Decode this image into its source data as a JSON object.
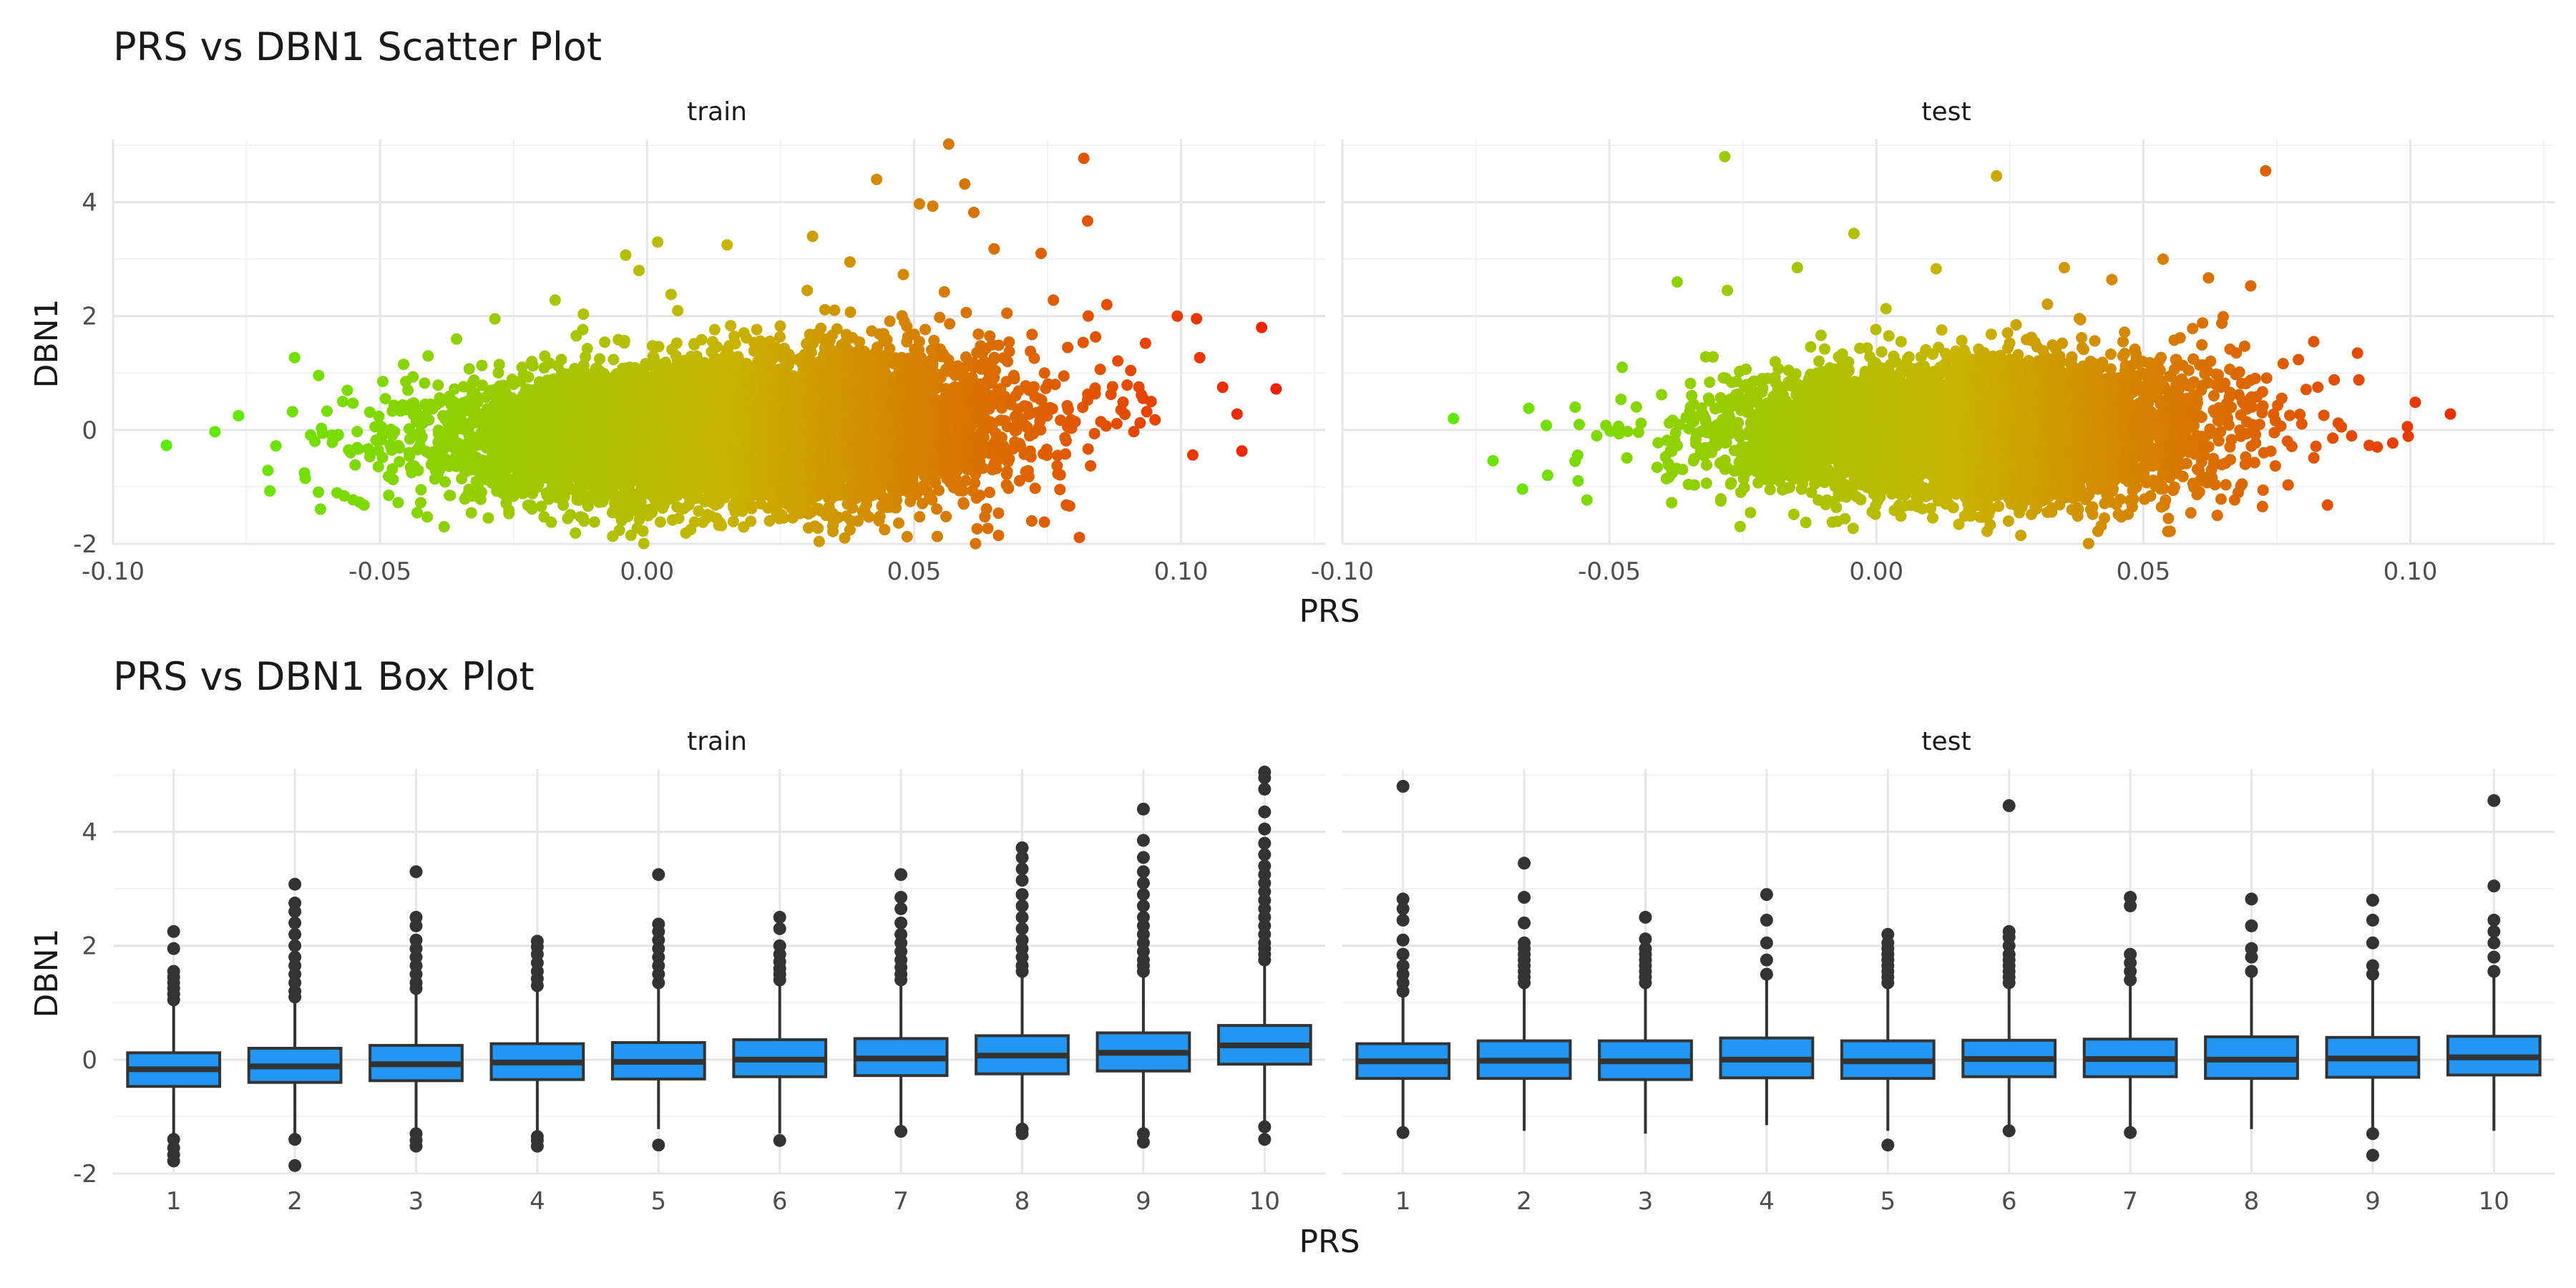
{
  "chart_data": [
    {
      "type": "scatter",
      "title": "PRS vs DBN1 Scatter Plot",
      "xlabel": "PRS",
      "ylabel": "DBN1",
      "facets": [
        "train",
        "test"
      ],
      "x_ticks": [
        "-0.10",
        "-0.05",
        "0.00",
        "0.05",
        "0.10"
      ],
      "y_ticks": [
        "-2",
        "0",
        "2",
        "4"
      ],
      "xlim": [
        -0.1,
        0.127
      ],
      "ylim": [
        -2.0,
        5.1
      ],
      "grid": true,
      "color_scale": {
        "low": "#55ee00",
        "mid": "#c8b400",
        "high": "#f01e00"
      },
      "series": [
        {
          "facet": "train",
          "points": [
            [
              -0.09,
              -0.27
            ],
            [
              -0.0765,
              0.25
            ],
            [
              -0.071,
              -0.71
            ],
            [
              -0.066,
              1.27
            ],
            [
              -0.0664,
              0.32
            ],
            [
              -0.0695,
              -0.28
            ],
            [
              -0.063,
              -0.09
            ],
            [
              -0.064,
              -0.85
            ],
            [
              -0.057,
              0.5
            ],
            [
              -0.053,
              -1.32
            ],
            [
              -0.0452,
              0.85
            ],
            [
              -0.041,
              1.3
            ],
            [
              -0.039,
              -0.63
            ],
            [
              -0.037,
              -1.15
            ],
            [
              -0.0285,
              1.95
            ],
            [
              -0.038,
              -1.7
            ],
            [
              -0.0172,
              2.28
            ],
            [
              -0.0134,
              -1.81
            ],
            [
              -0.0118,
              -1.6
            ],
            [
              -0.004,
              3.07
            ],
            [
              -0.0015,
              2.8
            ],
            [
              0.002,
              3.3
            ],
            [
              0.0045,
              2.38
            ],
            [
              -0.003,
              -1.85
            ],
            [
              0.015,
              3.25
            ],
            [
              0.013,
              -1.55
            ],
            [
              0.03,
              2.45
            ],
            [
              0.029,
              -1.45
            ],
            [
              0.031,
              3.4
            ],
            [
              0.038,
              2.95
            ],
            [
              0.0395,
              -1.6
            ],
            [
              0.043,
              4.4
            ],
            [
              0.048,
              2.73
            ],
            [
              0.051,
              3.97
            ],
            [
              0.0535,
              3.93
            ],
            [
              0.0565,
              5.02
            ],
            [
              0.0595,
              4.32
            ],
            [
              0.0612,
              3.82
            ],
            [
              0.065,
              3.18
            ],
            [
              0.0674,
              2.05
            ],
            [
              0.0718,
              1.38
            ],
            [
              0.0738,
              3.1
            ],
            [
              0.0761,
              2.28
            ],
            [
              0.0818,
              4.77
            ],
            [
              0.0825,
              3.67
            ],
            [
              0.0861,
              2.2
            ],
            [
              0.0993,
              2.0
            ],
            [
              0.1035,
              1.27
            ],
            [
              0.1022,
              -0.44
            ],
            [
              0.1078,
              0.75
            ],
            [
              0.1105,
              0.28
            ],
            [
              0.1151,
              1.8
            ],
            [
              0.1178,
              0.72
            ],
            [
              0.1114,
              -0.37
            ],
            [
              0.0715,
              -0.82
            ],
            [
              0.0669,
              -0.42
            ],
            [
              0.0612,
              -0.62
            ],
            [
              0.0452,
              -1.22
            ]
          ]
        },
        {
          "facet": "test",
          "points": [
            [
              -0.0792,
              0.2
            ],
            [
              -0.0718,
              -0.54
            ],
            [
              -0.0651,
              0.38
            ],
            [
              -0.0618,
              0.08
            ],
            [
              -0.0564,
              0.4
            ],
            [
              -0.0542,
              -1.23
            ],
            [
              -0.0476,
              1.1
            ],
            [
              -0.0373,
              2.6
            ],
            [
              -0.0284,
              4.8
            ],
            [
              -0.0279,
              2.45
            ],
            [
              -0.0148,
              2.85
            ],
            [
              -0.0042,
              3.45
            ],
            [
              0.0018,
              2.13
            ],
            [
              0.0112,
              2.83
            ],
            [
              0.0225,
              4.46
            ],
            [
              0.0173,
              -1.4
            ],
            [
              0.0352,
              2.85
            ],
            [
              0.0415,
              -1.78
            ],
            [
              0.0441,
              2.64
            ],
            [
              0.0537,
              3.0
            ],
            [
              0.0622,
              2.67
            ],
            [
              0.0701,
              2.53
            ],
            [
              0.0729,
              4.55
            ],
            [
              0.0819,
              1.55
            ],
            [
              0.0901,
              1.35
            ],
            [
              0.0923,
              -0.27
            ],
            [
              0.0938,
              -0.3
            ],
            [
              0.0967,
              -0.23
            ],
            [
              0.0996,
              -0.11
            ],
            [
              0.1075,
              0.28
            ],
            [
              0.0865,
              0.12
            ]
          ]
        }
      ]
    },
    {
      "type": "box",
      "title": "PRS vs DBN1 Box Plot",
      "xlabel": "PRS",
      "ylabel": "DBN1",
      "facets": [
        "train",
        "test"
      ],
      "categories": [
        "1",
        "2",
        "3",
        "4",
        "5",
        "6",
        "7",
        "8",
        "9",
        "10"
      ],
      "y_ticks": [
        "-2",
        "0",
        "2",
        "4"
      ],
      "ylim": [
        -2.0,
        5.1
      ],
      "grid": true,
      "box_color": "#2196f3",
      "series": [
        {
          "facet": "train",
          "boxes": [
            {
              "q1": -0.47,
              "median": -0.17,
              "q3": 0.12,
              "whisker_low": -1.3,
              "whisker_high": 0.98,
              "outliers": [
                -1.4,
                -1.55,
                -1.67,
                -1.78,
                1.05,
                1.15,
                1.25,
                1.35,
                1.45,
                1.55,
                1.95,
                2.25
              ]
            },
            {
              "q1": -0.4,
              "median": -0.12,
              "q3": 0.2,
              "whisker_low": -1.3,
              "whisker_high": 1.05,
              "outliers": [
                -1.4,
                -1.86,
                1.1,
                1.2,
                1.35,
                1.5,
                1.65,
                1.8,
                2.0,
                2.2,
                2.4,
                2.6,
                2.75,
                3.08
              ]
            },
            {
              "q1": -0.37,
              "median": -0.08,
              "q3": 0.25,
              "whisker_low": -1.25,
              "whisker_high": 1.18,
              "outliers": [
                -1.3,
                -1.42,
                -1.52,
                1.25,
                1.35,
                1.5,
                1.65,
                1.8,
                1.95,
                2.1,
                2.35,
                2.5,
                3.3
              ]
            },
            {
              "q1": -0.35,
              "median": -0.05,
              "q3": 0.28,
              "whisker_low": -1.27,
              "whisker_high": 1.25,
              "outliers": [
                -1.35,
                -1.42,
                -1.52,
                1.3,
                1.42,
                1.55,
                1.7,
                1.85,
                1.98,
                2.08
              ]
            },
            {
              "q1": -0.34,
              "median": -0.04,
              "q3": 0.3,
              "whisker_low": -1.22,
              "whisker_high": 1.3,
              "outliers": [
                -1.5,
                1.35,
                1.5,
                1.65,
                1.8,
                1.95,
                2.1,
                2.25,
                2.38,
                3.25
              ]
            },
            {
              "q1": -0.3,
              "median": 0.0,
              "q3": 0.35,
              "whisker_low": -1.3,
              "whisker_high": 1.32,
              "outliers": [
                -1.42,
                1.4,
                1.5,
                1.6,
                1.72,
                1.85,
                2.0,
                2.3,
                2.5
              ]
            },
            {
              "q1": -0.28,
              "median": 0.02,
              "q3": 0.37,
              "whisker_low": -1.2,
              "whisker_high": 1.35,
              "outliers": [
                -1.26,
                1.4,
                1.5,
                1.62,
                1.75,
                1.9,
                2.05,
                2.2,
                2.4,
                2.65,
                2.85,
                3.25
              ]
            },
            {
              "q1": -0.25,
              "median": 0.07,
              "q3": 0.42,
              "whisker_low": -1.15,
              "whisker_high": 1.45,
              "outliers": [
                -1.22,
                -1.3,
                1.55,
                1.65,
                1.8,
                1.95,
                2.1,
                2.3,
                2.5,
                2.7,
                2.9,
                3.15,
                3.35,
                3.55,
                3.72
              ]
            },
            {
              "q1": -0.2,
              "median": 0.12,
              "q3": 0.47,
              "whisker_low": -1.2,
              "whisker_high": 1.5,
              "outliers": [
                -1.3,
                -1.45,
                1.55,
                1.65,
                1.75,
                1.9,
                2.05,
                2.2,
                2.35,
                2.5,
                2.7,
                2.9,
                3.1,
                3.3,
                3.55,
                3.85,
                4.4
              ]
            },
            {
              "q1": -0.08,
              "median": 0.25,
              "q3": 0.6,
              "whisker_low": -1.1,
              "whisker_high": 1.7,
              "outliers": [
                -1.18,
                -1.4,
                1.75,
                1.85,
                1.95,
                2.05,
                2.2,
                2.35,
                2.5,
                2.65,
                2.8,
                2.95,
                3.1,
                3.25,
                3.4,
                3.6,
                3.8,
                4.05,
                4.35,
                4.75,
                4.95,
                5.05
              ]
            }
          ]
        },
        {
          "facet": "test",
          "boxes": [
            {
              "q1": -0.33,
              "median": -0.03,
              "q3": 0.28,
              "whisker_low": -1.2,
              "whisker_high": 1.15,
              "outliers": [
                -1.28,
                1.2,
                1.35,
                1.5,
                1.65,
                1.85,
                2.1,
                2.45,
                2.65,
                2.82,
                4.8
              ]
            },
            {
              "q1": -0.33,
              "median": -0.02,
              "q3": 0.33,
              "whisker_low": -1.25,
              "whisker_high": 1.3,
              "outliers": [
                1.35,
                1.45,
                1.55,
                1.65,
                1.75,
                1.85,
                1.95,
                2.05,
                2.4,
                2.85,
                3.45
              ]
            },
            {
              "q1": -0.35,
              "median": -0.03,
              "q3": 0.33,
              "whisker_low": -1.3,
              "whisker_high": 1.3,
              "outliers": [
                1.35,
                1.45,
                1.55,
                1.65,
                1.75,
                1.85,
                1.95,
                2.12,
                2.5
              ]
            },
            {
              "q1": -0.32,
              "median": 0.0,
              "q3": 0.38,
              "whisker_low": -1.15,
              "whisker_high": 1.4,
              "outliers": [
                1.5,
                1.75,
                2.05,
                2.45,
                2.9
              ]
            },
            {
              "q1": -0.33,
              "median": -0.03,
              "q3": 0.33,
              "whisker_low": -1.25,
              "whisker_high": 1.3,
              "outliers": [
                -1.5,
                1.35,
                1.45,
                1.55,
                1.65,
                1.75,
                1.85,
                1.95,
                2.05,
                2.2
              ]
            },
            {
              "q1": -0.3,
              "median": 0.01,
              "q3": 0.34,
              "whisker_low": -1.2,
              "whisker_high": 1.3,
              "outliers": [
                -1.25,
                1.35,
                1.45,
                1.55,
                1.65,
                1.75,
                1.85,
                2.0,
                2.15,
                2.25,
                4.46
              ]
            },
            {
              "q1": -0.3,
              "median": 0.01,
              "q3": 0.36,
              "whisker_low": -1.2,
              "whisker_high": 1.33,
              "outliers": [
                -1.28,
                1.4,
                1.55,
                1.7,
                1.85,
                2.7,
                2.85
              ]
            },
            {
              "q1": -0.33,
              "median": 0.0,
              "q3": 0.4,
              "whisker_low": -1.22,
              "whisker_high": 1.45,
              "outliers": [
                1.55,
                1.8,
                1.95,
                2.35,
                2.82
              ]
            },
            {
              "q1": -0.31,
              "median": 0.02,
              "q3": 0.39,
              "whisker_low": -1.2,
              "whisker_high": 1.4,
              "outliers": [
                -1.3,
                -1.68,
                1.5,
                1.65,
                2.05,
                2.45,
                2.8
              ]
            },
            {
              "q1": -0.27,
              "median": 0.04,
              "q3": 0.41,
              "whisker_low": -1.25,
              "whisker_high": 1.45,
              "outliers": [
                1.55,
                1.8,
                2.05,
                2.25,
                2.45,
                3.05,
                4.55
              ]
            }
          ]
        }
      ]
    }
  ]
}
